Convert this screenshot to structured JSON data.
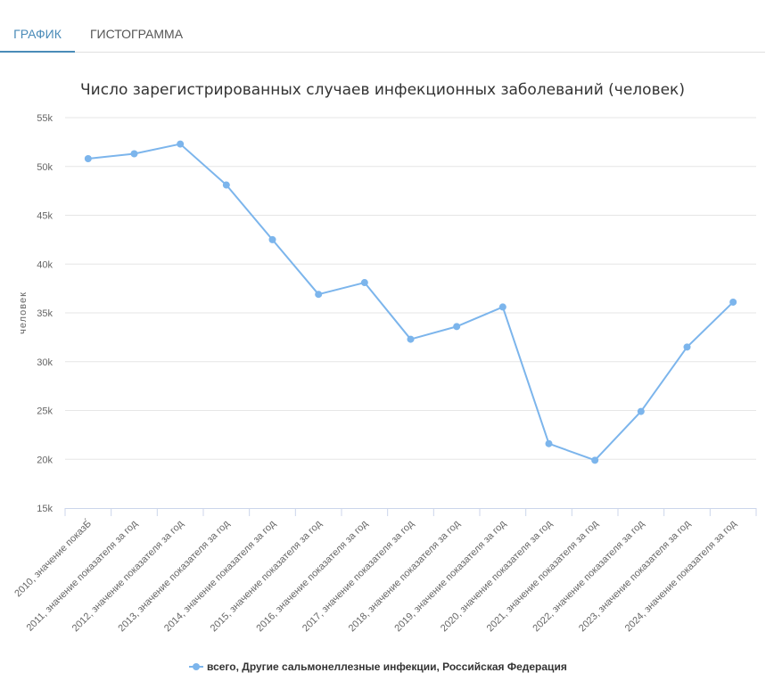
{
  "tabs": [
    {
      "label": "ГРАФИК",
      "active": true
    },
    {
      "label": "ГИСТОГРАММА",
      "active": false
    }
  ],
  "colors": {
    "series": "#7cb5ec",
    "accent": "#4a8bb8",
    "grid": "#e6e6e6",
    "axis": "#ccd6eb"
  },
  "chart_data": {
    "type": "line",
    "title": "Число зарегистрированных случаев инфекционных заболеваний (человек)",
    "ylabel": "человек",
    "ylim": [
      15000,
      55000
    ],
    "yticks": [
      "15k",
      "20k",
      "25k",
      "30k",
      "35k",
      "40k",
      "45k",
      "50k",
      "55k"
    ],
    "ytick_values": [
      15000,
      20000,
      25000,
      30000,
      35000,
      40000,
      45000,
      50000,
      55000
    ],
    "grid": true,
    "legend_position": "bottom-center",
    "categories": [
      "2010, значение показБ́",
      "2011, значение показателя за год",
      "2012, значение показателя за год",
      "2013, значение показателя за год",
      "2014, значение показателя за год",
      "2015, значение показателя за год",
      "2016, значение показателя за год",
      "2017, значение показателя за год",
      "2018, значение показателя за год",
      "2019, значение показателя за год",
      "2020, значение показателя за год",
      "2021, значение показателя за год",
      "2022, значение показателя за год",
      "2023, значение показателя за год",
      "2024, значение показателя за год"
    ],
    "series": [
      {
        "name": "всего, Другие сальмонеллезные инфекции, Российская Федерация",
        "values": [
          50800,
          51300,
          52300,
          48100,
          42500,
          36900,
          38100,
          32300,
          33600,
          35600,
          21600,
          19900,
          24900,
          31500,
          36100
        ]
      }
    ]
  }
}
